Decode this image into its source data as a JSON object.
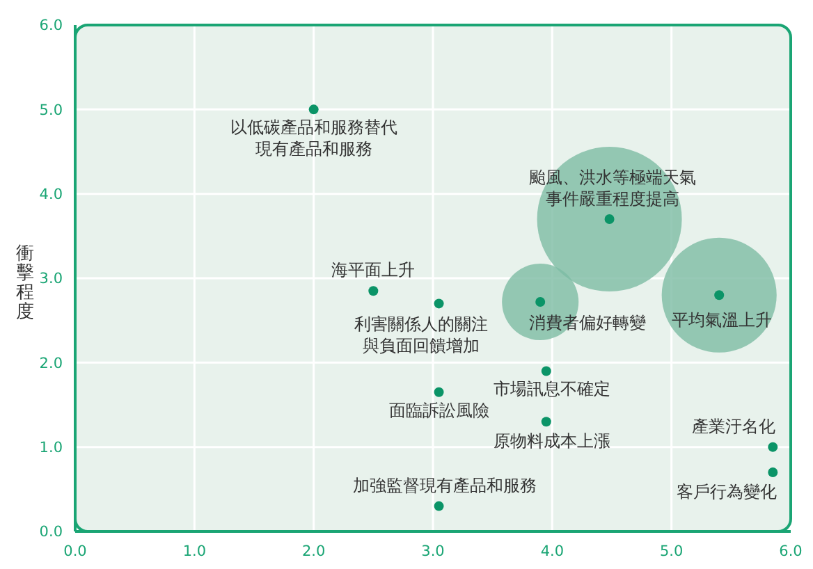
{
  "chart_data": {
    "type": "scatter",
    "ylabel": "衝擊程度",
    "xlim": [
      0,
      6
    ],
    "xticks": [
      {
        "value": 0,
        "label": "0.0"
      },
      {
        "value": 1,
        "label": "1.0"
      },
      {
        "value": 2,
        "label": "2.0"
      },
      {
        "value": 3,
        "label": "3.0"
      },
      {
        "value": 4,
        "label": "4.0"
      },
      {
        "value": 5,
        "label": "5.0"
      },
      {
        "value": 6,
        "label": "6.0"
      }
    ],
    "ylim": [
      0,
      6
    ],
    "yticks": [
      {
        "value": 0,
        "label": "0.0"
      },
      {
        "value": 1,
        "label": "1.0"
      },
      {
        "value": 2,
        "label": "2.0"
      },
      {
        "value": 3,
        "label": "3.0"
      },
      {
        "value": 4,
        "label": "4.0"
      },
      {
        "value": 5,
        "label": "5.0"
      },
      {
        "value": 6,
        "label": "6.0"
      }
    ],
    "grid": true,
    "marker": "circle",
    "series": [
      {
        "type": "bubble",
        "color": "#7dbba4",
        "x": [
          4.48,
          5.4,
          3.9
        ],
        "values": [
          3.7,
          2.8,
          2.72
        ],
        "sizes": [
          1,
          0.63,
          0.28
        ]
      },
      {
        "color": "#0b9467",
        "x": [
          2.0,
          2.5,
          3.05,
          3.05,
          3.05,
          3.9,
          3.95,
          3.95,
          4.48,
          5.4,
          5.85,
          5.85
        ],
        "values": [
          5.0,
          2.85,
          2.7,
          1.65,
          0.3,
          2.72,
          1.9,
          1.3,
          3.7,
          2.8,
          1.0,
          0.7
        ]
      }
    ],
    "annotations": [
      {
        "text": "以低碳產品和服務替代現有產品和服務",
        "x": 2.0,
        "y": 5.0
      },
      {
        "text": "海平面上升",
        "x": 2.5,
        "y": 2.85
      },
      {
        "text": "利害關係人的關注與負面回饋增加",
        "x": 3.05,
        "y": 2.7
      },
      {
        "text": "面臨訴訟風險",
        "x": 3.05,
        "y": 1.65
      },
      {
        "text": "加強監督現有產品和服務",
        "x": 3.05,
        "y": 0.3
      },
      {
        "text": "消費者偏好轉變",
        "x": 3.9,
        "y": 2.72
      },
      {
        "text": "市場訊息不確定",
        "x": 3.95,
        "y": 1.9
      },
      {
        "text": "原物料成本上漲",
        "x": 3.95,
        "y": 1.3
      },
      {
        "text": "颱風、洪水等極端天氣事件嚴重程度提高",
        "x": 4.48,
        "y": 3.7
      },
      {
        "text": "平均氣溫上升",
        "x": 5.4,
        "y": 2.8
      },
      {
        "text": "產業汙名化",
        "x": 5.85,
        "y": 1.0
      },
      {
        "text": "客戶行為變化",
        "x": 5.85,
        "y": 0.7
      }
    ]
  }
}
